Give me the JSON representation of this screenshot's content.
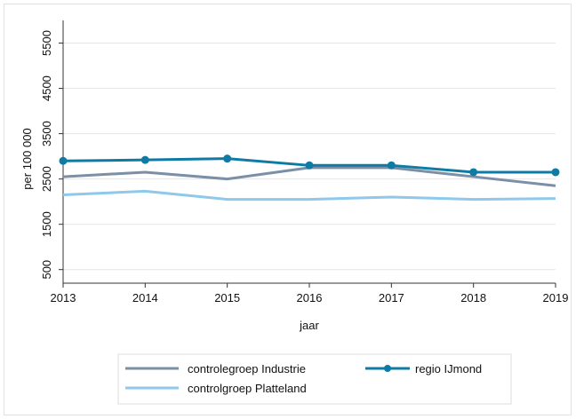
{
  "chart_data": {
    "type": "line",
    "title": "",
    "xlabel": "jaar",
    "ylabel": "per 100 000",
    "x": [
      2013,
      2014,
      2015,
      2016,
      2017,
      2018,
      2019
    ],
    "x_tick_labels": [
      "2013",
      "2014",
      "2015",
      "2016",
      "2017",
      "2018",
      "2019"
    ],
    "y_ticks": [
      500,
      1500,
      2500,
      3500,
      4500,
      5500
    ],
    "y_tick_labels": [
      "500",
      "1500",
      "2500",
      "3500",
      "4500",
      "5500"
    ],
    "ylim": [
      200,
      6000
    ],
    "xlim": [
      2013,
      2019
    ],
    "grid": "horizontal",
    "legend_position": "bottom",
    "series": [
      {
        "name": "controlegroep Industrie",
        "color": "#7b8fa6",
        "marker": "none",
        "values": [
          2550,
          2650,
          2500,
          2750,
          2750,
          2550,
          2350
        ]
      },
      {
        "name": "regio IJmond",
        "color": "#0f7ba5",
        "marker": "circle",
        "values": [
          2900,
          2920,
          2950,
          2800,
          2800,
          2650,
          2650
        ]
      },
      {
        "name": "controlgroep Platteland",
        "color": "#8ec8eb",
        "marker": "none",
        "values": [
          2150,
          2230,
          2050,
          2050,
          2100,
          2050,
          2070
        ]
      }
    ]
  }
}
